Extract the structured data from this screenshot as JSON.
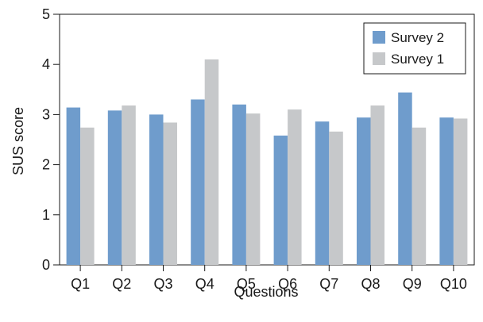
{
  "chart_data": {
    "type": "bar",
    "title": "",
    "xlabel": "Questions",
    "ylabel": "SUS score",
    "categories": [
      "Q1",
      "Q2",
      "Q3",
      "Q4",
      "Q5",
      "Q6",
      "Q7",
      "Q8",
      "Q9",
      "Q10"
    ],
    "series": [
      {
        "name": "Survey 2",
        "color": "#6f9ccc",
        "values": [
          3.14,
          3.08,
          3.0,
          3.3,
          3.2,
          2.58,
          2.86,
          2.94,
          3.44,
          2.94
        ]
      },
      {
        "name": "Survey 1",
        "color": "#c6c8ca",
        "values": [
          2.74,
          3.18,
          2.84,
          4.1,
          3.02,
          3.1,
          2.66,
          3.18,
          2.74,
          2.92
        ]
      }
    ],
    "ylim": [
      0,
      5
    ],
    "yticks": [
      0,
      1,
      2,
      3,
      4,
      5
    ],
    "grid": false,
    "legend_position": "top-right"
  }
}
